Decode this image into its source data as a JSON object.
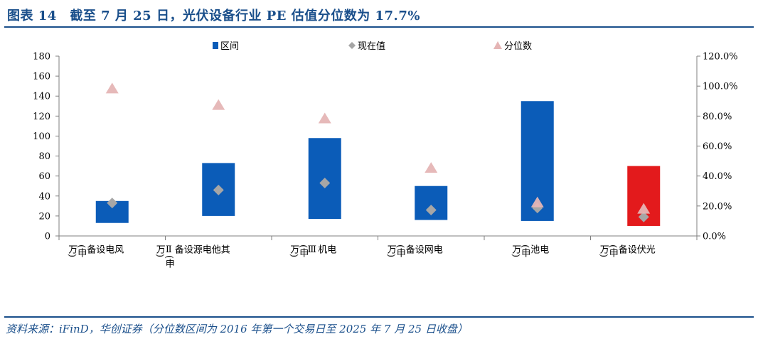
{
  "header": {
    "title": "图表 14　截至 7 月 25 日，光伏设备行业 PE 估值分位数为 17.7%"
  },
  "footer": {
    "source": "资料来源：iFinD，华创证券（分位数区间为 2016 年第一个交易日至 2025 年 7 月 25 日收盘）"
  },
  "chart_data": {
    "type": "bar",
    "categories": [
      "风电设备(申万)",
      "其他电源设备Ⅱ(申万)",
      "电机Ⅲ(申万)",
      "电网设备(申万)",
      "电池(申万)",
      "光伏设备(申万)"
    ],
    "category_lines": [
      [
        "风",
        "电",
        "设",
        "备",
        "(申",
        "万)"
      ],
      [
        "其",
        "他",
        "电",
        "源",
        "设",
        "备",
        "Ⅱ(申",
        "万)"
      ],
      [
        "电",
        "机",
        "Ⅲ",
        "(申",
        "万)"
      ],
      [
        "电",
        "网",
        "设",
        "备",
        "(申",
        "万)"
      ],
      [
        "电",
        "池",
        "(申",
        "万)"
      ],
      [
        "光",
        "伏",
        "设",
        "备",
        "(申",
        "万)"
      ]
    ],
    "series": [
      {
        "name": "区间",
        "kind": "range",
        "low": [
          13,
          20,
          17,
          16,
          15,
          10
        ],
        "high": [
          35,
          73,
          98,
          50,
          135,
          70
        ]
      },
      {
        "name": "现在值",
        "kind": "marker",
        "values": [
          33,
          46,
          53,
          26,
          28,
          19
        ]
      },
      {
        "name": "分位数",
        "kind": "marker",
        "axis": "right",
        "values": [
          98,
          87,
          78,
          45,
          22,
          17.7
        ]
      }
    ],
    "colors": {
      "range": "#0b5cb8",
      "highlight": "#e31a1c",
      "current": "#a6a6a6",
      "percentile": "#e5b5b5"
    },
    "highlight_index": 5,
    "y_left": {
      "min": 0,
      "max": 180,
      "ticks": [
        "0",
        "20",
        "40",
        "60",
        "80",
        "100",
        "120",
        "140",
        "160",
        "180"
      ]
    },
    "y_right": {
      "min": 0,
      "max": 120,
      "ticks": [
        "0.0%",
        "20.0%",
        "40.0%",
        "60.0%",
        "80.0%",
        "100.0%",
        "120.0%"
      ]
    },
    "legend_position": "top-center",
    "grid": false
  }
}
